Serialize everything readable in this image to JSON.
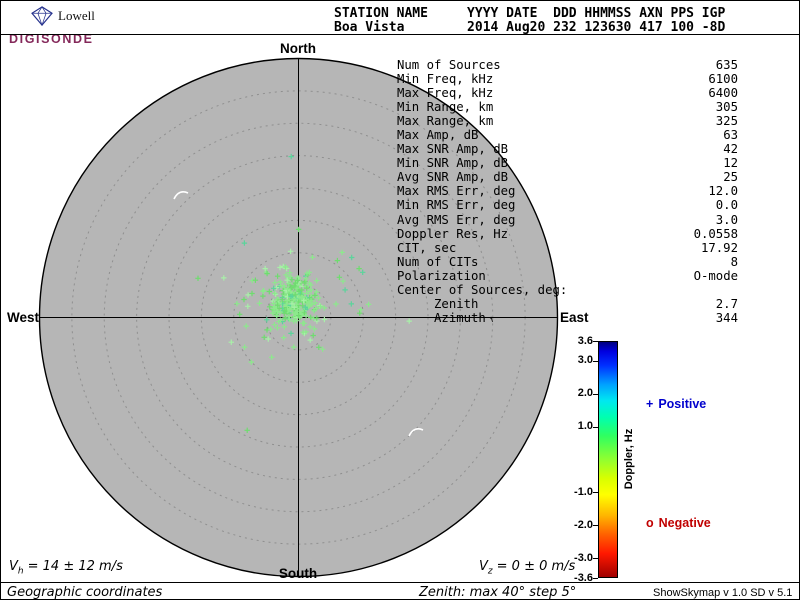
{
  "logo": {
    "brand": "Lowell",
    "product": "DIGISONDE",
    "brand_color": "#84285a"
  },
  "header": {
    "columns": [
      {
        "label": "STATION NAME",
        "value": "Boa Vista"
      },
      {
        "label": "YYYY DATE",
        "value": "2014 Aug20"
      },
      {
        "label": "DDD",
        "value": "232"
      },
      {
        "label": "HHMMSS",
        "value": "123630"
      },
      {
        "label": "AXN",
        "value": "417"
      },
      {
        "label": "PPS",
        "value": "100"
      },
      {
        "label": "IGP",
        "value": "-8D"
      }
    ]
  },
  "skymap": {
    "labels": {
      "north": "North",
      "south": "South",
      "west": "West",
      "east": "East"
    }
  },
  "stats": {
    "rows": [
      {
        "label": "Num of Sources",
        "value": "635"
      },
      {
        "label": "Min Freq, kHz",
        "value": "6100"
      },
      {
        "label": "Max Freq, kHz",
        "value": "6400"
      },
      {
        "label": "Min Range, km",
        "value": "305"
      },
      {
        "label": "Max Range, km",
        "value": "325"
      },
      {
        "label": "Max Amp, dB",
        "value": "63"
      },
      {
        "label": "Max SNR Amp, dB",
        "value": "42"
      },
      {
        "label": "Min SNR Amp, dB",
        "value": "12"
      },
      {
        "label": "Avg SNR Amp, dB",
        "value": "25"
      },
      {
        "label": "Max RMS Err, deg",
        "value": "12.0"
      },
      {
        "label": "Min RMS Err, deg",
        "value": "0.0"
      },
      {
        "label": "Avg RMS Err, deg",
        "value": "3.0"
      },
      {
        "label": "Doppler Res, Hz",
        "value": "0.0558"
      },
      {
        "label": "CIT, sec",
        "value": "17.92"
      },
      {
        "label": "Num of CITs",
        "value": "8"
      },
      {
        "label": "Polarization",
        "value": "O-mode"
      },
      {
        "label": "Center of Sources, deg:",
        "value": ""
      },
      {
        "label": "     Zenith",
        "value": "2.7"
      },
      {
        "label": "     Azimuth",
        "arrow": "↑",
        "value": "344"
      }
    ]
  },
  "legend": {
    "positive_marker": "+",
    "positive_label": "Positive",
    "positive_color": "#0000cd",
    "negative_marker": "o",
    "negative_label": "Negative",
    "negative_color": "#c00000"
  },
  "velocity": {
    "horizontal": {
      "symbol": "V",
      "sub": "h",
      "text": "= 14 ± 12 m/s"
    },
    "vertical": {
      "symbol": "V",
      "sub": "z",
      "text": "= 0 ± 0 m/s"
    }
  },
  "footer": {
    "coordinates": "Geographic coordinates",
    "zenith_info": "Zenith: max 40°  step 5°",
    "version": "ShowSkymap v 1.0  SD v 5.1"
  },
  "chart_data": {
    "type": "scatter",
    "subtype": "polar-skymap",
    "title": "Digisonde skymap of ionospheric echo sources, Boa Vista 2014 Aug20 232 123630",
    "direction_labels": [
      "North",
      "East",
      "South",
      "West"
    ],
    "zenith_max_deg": 40,
    "zenith_step_deg": 5,
    "num_rings": 8,
    "num_sources": 635,
    "center_of_sources": {
      "zenith_deg": 2.7,
      "azimuth_deg": 344
    },
    "doppler_range_hz": [
      -3.6,
      3.6
    ],
    "plot_bg": "#b6b6b6",
    "ring_color": "#8f8f8f",
    "colorbar": {
      "title": "Doppler, Hz",
      "tick_labels": [
        "3.6",
        "3.0",
        "2.0",
        "1.0",
        "-1.0",
        "-2.0",
        "-3.0",
        "-3.6"
      ],
      "tick_values": [
        3.6,
        3.0,
        2.0,
        1.0,
        -1.0,
        -2.0,
        -3.0,
        -3.6
      ],
      "gradient": [
        [
          "0%",
          "#00007f"
        ],
        [
          "4%",
          "#0000e0"
        ],
        [
          "10%",
          "#0030ff"
        ],
        [
          "18%",
          "#00a0ff"
        ],
        [
          "25%",
          "#00e8f0"
        ],
        [
          "32%",
          "#00ffb0"
        ],
        [
          "40%",
          "#30ff60"
        ],
        [
          "50%",
          "#90ff30"
        ],
        [
          "58%",
          "#d8ff00"
        ],
        [
          "65%",
          "#ffff00"
        ],
        [
          "74%",
          "#ffb400"
        ],
        [
          "82%",
          "#ff6000"
        ],
        [
          "90%",
          "#ff1800"
        ],
        [
          "100%",
          "#a00000"
        ]
      ]
    },
    "clusters": [
      {
        "count": 240,
        "center_zenith_deg": 2.7,
        "center_azimuth_deg": 344,
        "sigma_deg": 1.7
      },
      {
        "count": 85,
        "center_zenith_deg": 2.7,
        "center_azimuth_deg": 344,
        "sigma_deg": 4.2
      },
      {
        "count": 14,
        "center_zenith_deg": 3.5,
        "center_azimuth_deg": 344,
        "sigma_deg": 9.0
      }
    ],
    "point_palette": [
      {
        "color": "#8ce98c",
        "w": 0.55
      },
      {
        "color": "#6fdc6f",
        "w": 0.25
      },
      {
        "color": "#a8f0a8",
        "w": 0.12
      },
      {
        "color": "#5bd49b",
        "w": 0.08
      }
    ],
    "white_arcs": [
      "M 136 142 Q 141 132 150 136",
      "M 371 379 Q 376 369 385 373"
    ],
    "velocities": {
      "horizontal_ms": "14 ± 12",
      "vertical_ms": "0 ± 0"
    }
  }
}
